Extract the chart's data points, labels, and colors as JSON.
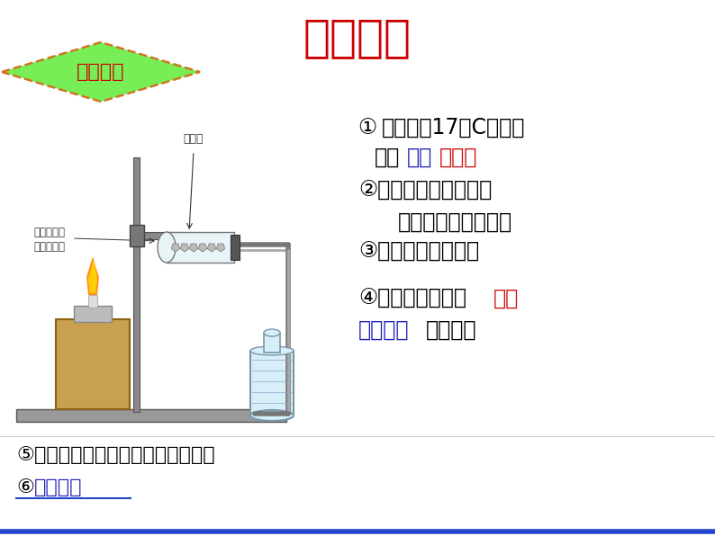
{
  "title": "一、乙烯",
  "title_color": "#CC0000",
  "title_fontsize": 36,
  "badge_text": "科学探究",
  "badge_text_color": "#CC0000",
  "badge_bg_top": "#AAFFAA",
  "badge_bg_bot": "#33CC33",
  "badge_border": "#CC7722",
  "bg_color": "#FFFFFF",
  "text_fontsize": 16,
  "annotation_fontsize": 10,
  "bottom_line_color": "#2244CC",
  "diagram_label1": "碎瓷片",
  "diagram_label2": "浸透了石蜡",
  "diagram_label3": "油的矿渣棉"
}
